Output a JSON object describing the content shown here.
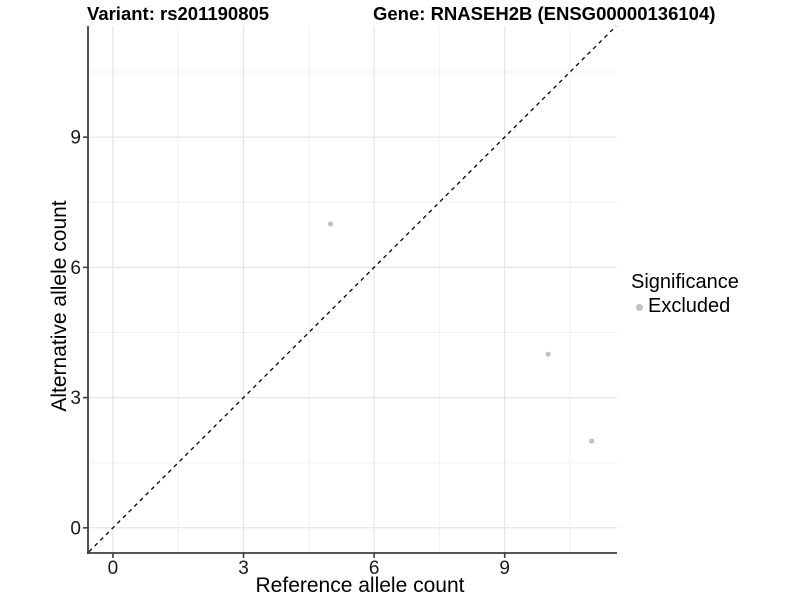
{
  "chart_data": {
    "type": "scatter",
    "title_left": "Variant: rs201190805",
    "title_right": "Gene: RNASEH2B (ENSG00000136104)",
    "xlabel": "Reference allele count",
    "ylabel": "Alternative allele count",
    "xlim": [
      -0.55,
      11.58
    ],
    "ylim": [
      -0.58,
      11.56
    ],
    "xticks": [
      0,
      3,
      6,
      9
    ],
    "yticks": [
      0,
      3,
      6,
      9
    ],
    "xminor": [
      1.5,
      4.5,
      7.5,
      10.5
    ],
    "yminor": [
      1.5,
      4.5,
      7.5,
      10.5
    ],
    "grid": "major+minor",
    "legend_position": "right",
    "series": [
      {
        "name": "Excluded",
        "marker": "circle",
        "color": "#c2c2c2",
        "points": [
          [
            5,
            7
          ],
          [
            10,
            4
          ],
          [
            11,
            2
          ]
        ]
      }
    ],
    "reference_line": {
      "kind": "identity y=x",
      "style": "dashed",
      "color": "#000000"
    },
    "legend": {
      "title": "Significance",
      "items": [
        {
          "label": "Excluded",
          "color": "#c2c2c2"
        }
      ]
    },
    "colors": {
      "background": "#ffffff",
      "grid_major": "#e4e4e4",
      "grid_minor": "#f0f0f0",
      "axis_line": "#3f3f3f",
      "tick_text": "#1a1a1a",
      "title_text": "#000000"
    }
  }
}
